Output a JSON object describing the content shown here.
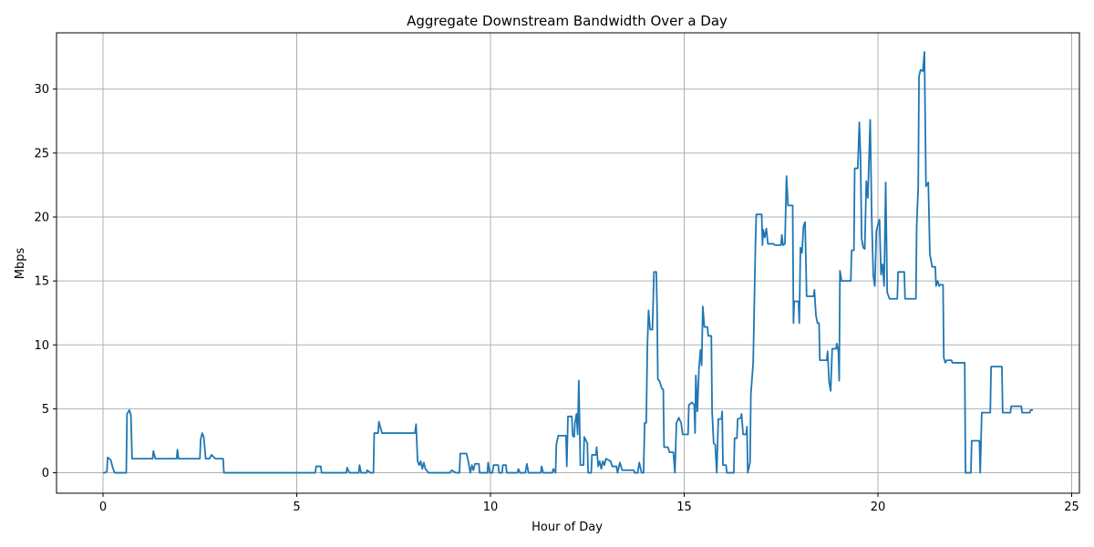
{
  "chart_data": {
    "type": "line",
    "title": "Aggregate Downstream Bandwidth Over a Day",
    "xlabel": "Hour of Day",
    "ylabel": "Mbps",
    "xlim": [
      -1.2,
      25.2
    ],
    "ylim": [
      -1.6,
      34.4
    ],
    "xticks": [
      0,
      5,
      10,
      15,
      20,
      25
    ],
    "yticks": [
      0,
      5,
      10,
      15,
      20,
      25,
      30
    ],
    "grid": true,
    "line_color": "#1f77b4",
    "series": [
      {
        "points": [
          [
            0.0,
            0.0
          ],
          [
            0.05,
            0.0
          ],
          [
            0.1,
            0.1
          ],
          [
            0.12,
            1.2
          ],
          [
            0.2,
            1.0
          ],
          [
            0.25,
            0.4
          ],
          [
            0.3,
            0.0
          ],
          [
            0.6,
            0.0
          ],
          [
            0.62,
            4.6
          ],
          [
            0.68,
            4.9
          ],
          [
            0.72,
            4.5
          ],
          [
            0.75,
            1.1
          ],
          [
            1.28,
            1.1
          ],
          [
            1.3,
            1.7
          ],
          [
            1.35,
            1.1
          ],
          [
            1.9,
            1.1
          ],
          [
            1.92,
            1.8
          ],
          [
            1.95,
            1.1
          ],
          [
            2.5,
            1.1
          ],
          [
            2.52,
            2.6
          ],
          [
            2.56,
            3.1
          ],
          [
            2.6,
            2.8
          ],
          [
            2.65,
            1.1
          ],
          [
            2.75,
            1.1
          ],
          [
            2.8,
            1.4
          ],
          [
            2.9,
            1.1
          ],
          [
            3.1,
            1.1
          ],
          [
            3.12,
            0.0
          ],
          [
            5.48,
            0.0
          ],
          [
            5.5,
            0.5
          ],
          [
            5.62,
            0.5
          ],
          [
            5.64,
            0.0
          ],
          [
            6.28,
            0.0
          ],
          [
            6.3,
            0.4
          ],
          [
            6.36,
            0.0
          ],
          [
            6.6,
            0.0
          ],
          [
            6.62,
            0.6
          ],
          [
            6.66,
            0.0
          ],
          [
            6.8,
            0.0
          ],
          [
            6.82,
            0.2
          ],
          [
            6.9,
            0.0
          ],
          [
            6.98,
            0.0
          ],
          [
            7.0,
            3.1
          ],
          [
            7.1,
            3.1
          ],
          [
            7.12,
            4.0
          ],
          [
            7.2,
            3.1
          ],
          [
            8.0,
            3.1
          ],
          [
            8.05,
            3.1
          ],
          [
            8.08,
            3.8
          ],
          [
            8.12,
            0.9
          ],
          [
            8.16,
            0.6
          ],
          [
            8.2,
            0.9
          ],
          [
            8.24,
            0.3
          ],
          [
            8.28,
            0.8
          ],
          [
            8.32,
            0.3
          ],
          [
            8.4,
            0.0
          ],
          [
            8.95,
            0.0
          ],
          [
            9.0,
            0.2
          ],
          [
            9.1,
            0.0
          ],
          [
            9.2,
            0.0
          ],
          [
            9.22,
            1.5
          ],
          [
            9.38,
            1.5
          ],
          [
            9.42,
            1.0
          ],
          [
            9.48,
            0.0
          ],
          [
            9.52,
            0.6
          ],
          [
            9.56,
            0.2
          ],
          [
            9.6,
            0.7
          ],
          [
            9.7,
            0.7
          ],
          [
            9.72,
            0.0
          ],
          [
            9.92,
            0.0
          ],
          [
            9.94,
            0.8
          ],
          [
            9.98,
            0.0
          ],
          [
            10.05,
            0.0
          ],
          [
            10.08,
            0.6
          ],
          [
            10.2,
            0.6
          ],
          [
            10.22,
            0.0
          ],
          [
            10.3,
            0.0
          ],
          [
            10.32,
            0.6
          ],
          [
            10.4,
            0.6
          ],
          [
            10.42,
            0.0
          ],
          [
            10.7,
            0.0
          ],
          [
            10.72,
            0.3
          ],
          [
            10.76,
            0.0
          ],
          [
            10.9,
            0.0
          ],
          [
            10.94,
            0.7
          ],
          [
            10.98,
            0.0
          ],
          [
            11.3,
            0.0
          ],
          [
            11.32,
            0.5
          ],
          [
            11.36,
            0.0
          ],
          [
            11.6,
            0.0
          ],
          [
            11.62,
            0.3
          ],
          [
            11.68,
            0.0
          ],
          [
            11.7,
            2.2
          ],
          [
            11.75,
            2.9
          ],
          [
            11.95,
            2.9
          ],
          [
            11.97,
            0.5
          ],
          [
            12.0,
            4.4
          ],
          [
            12.1,
            4.4
          ],
          [
            12.12,
            2.9
          ],
          [
            12.16,
            2.8
          ],
          [
            12.18,
            3.9
          ],
          [
            12.22,
            4.6
          ],
          [
            12.25,
            3.0
          ],
          [
            12.28,
            7.2
          ],
          [
            12.32,
            0.6
          ],
          [
            12.4,
            0.6
          ],
          [
            12.42,
            2.8
          ],
          [
            12.5,
            2.3
          ],
          [
            12.52,
            0.0
          ],
          [
            12.6,
            0.0
          ],
          [
            12.62,
            1.4
          ],
          [
            12.72,
            1.4
          ],
          [
            12.74,
            2.0
          ],
          [
            12.78,
            0.5
          ],
          [
            12.82,
            0.9
          ],
          [
            12.86,
            0.3
          ],
          [
            12.9,
            0.9
          ],
          [
            12.94,
            0.6
          ],
          [
            12.98,
            1.1
          ],
          [
            13.1,
            0.9
          ],
          [
            13.14,
            0.5
          ],
          [
            13.25,
            0.5
          ],
          [
            13.28,
            0.0
          ],
          [
            13.34,
            0.8
          ],
          [
            13.4,
            0.2
          ],
          [
            13.7,
            0.2
          ],
          [
            13.72,
            0.0
          ],
          [
            13.8,
            0.0
          ],
          [
            13.84,
            0.8
          ],
          [
            13.9,
            0.0
          ],
          [
            13.95,
            0.0
          ],
          [
            13.98,
            3.9
          ],
          [
            14.02,
            3.9
          ],
          [
            14.05,
            10.0
          ],
          [
            14.08,
            12.7
          ],
          [
            14.12,
            11.2
          ],
          [
            14.18,
            11.2
          ],
          [
            14.22,
            15.7
          ],
          [
            14.28,
            15.7
          ],
          [
            14.3,
            12.9
          ],
          [
            14.32,
            7.3
          ],
          [
            14.36,
            7.2
          ],
          [
            14.42,
            6.6
          ],
          [
            14.46,
            6.5
          ],
          [
            14.48,
            2.0
          ],
          [
            14.58,
            2.0
          ],
          [
            14.62,
            1.6
          ],
          [
            14.72,
            1.6
          ],
          [
            14.76,
            0.0
          ],
          [
            14.8,
            3.9
          ],
          [
            14.86,
            4.3
          ],
          [
            14.92,
            3.9
          ],
          [
            14.96,
            3.0
          ],
          [
            15.1,
            3.0
          ],
          [
            15.12,
            5.3
          ],
          [
            15.2,
            5.5
          ],
          [
            15.26,
            5.3
          ],
          [
            15.28,
            3.1
          ],
          [
            15.3,
            7.6
          ],
          [
            15.34,
            4.8
          ],
          [
            15.38,
            8.1
          ],
          [
            15.42,
            9.6
          ],
          [
            15.45,
            8.4
          ],
          [
            15.48,
            13.0
          ],
          [
            15.52,
            11.4
          ],
          [
            15.6,
            11.4
          ],
          [
            15.62,
            10.7
          ],
          [
            15.7,
            10.7
          ],
          [
            15.72,
            4.8
          ],
          [
            15.76,
            2.3
          ],
          [
            15.8,
            2.2
          ],
          [
            15.84,
            0.0
          ],
          [
            15.88,
            4.2
          ],
          [
            15.96,
            4.2
          ],
          [
            15.98,
            4.8
          ],
          [
            16.0,
            0.6
          ],
          [
            16.08,
            0.6
          ],
          [
            16.1,
            0.0
          ],
          [
            16.28,
            0.0
          ],
          [
            16.3,
            2.7
          ],
          [
            16.36,
            2.7
          ],
          [
            16.38,
            4.2
          ],
          [
            16.46,
            4.3
          ],
          [
            16.48,
            4.6
          ],
          [
            16.52,
            3.0
          ],
          [
            16.6,
            3.0
          ],
          [
            16.62,
            3.6
          ],
          [
            16.64,
            0.0
          ],
          [
            16.7,
            0.8
          ],
          [
            16.72,
            6.1
          ],
          [
            16.78,
            8.6
          ],
          [
            16.84,
            18.0
          ],
          [
            16.86,
            20.2
          ],
          [
            17.0,
            20.2
          ],
          [
            17.02,
            17.8
          ],
          [
            17.04,
            19.0
          ],
          [
            17.08,
            18.4
          ],
          [
            17.12,
            19.1
          ],
          [
            17.16,
            17.9
          ],
          [
            17.3,
            17.9
          ],
          [
            17.35,
            17.8
          ],
          [
            17.5,
            17.8
          ],
          [
            17.52,
            18.6
          ],
          [
            17.55,
            17.8
          ],
          [
            17.6,
            17.9
          ],
          [
            17.64,
            23.2
          ],
          [
            17.68,
            20.9
          ],
          [
            17.8,
            20.9
          ],
          [
            17.82,
            11.7
          ],
          [
            17.84,
            13.4
          ],
          [
            17.95,
            13.4
          ],
          [
            17.97,
            11.7
          ],
          [
            18.0,
            17.6
          ],
          [
            18.04,
            17.2
          ],
          [
            18.08,
            19.3
          ],
          [
            18.12,
            19.6
          ],
          [
            18.16,
            13.8
          ],
          [
            18.34,
            13.8
          ],
          [
            18.36,
            14.3
          ],
          [
            18.4,
            12.3
          ],
          [
            18.44,
            11.7
          ],
          [
            18.48,
            11.7
          ],
          [
            18.5,
            8.8
          ],
          [
            18.68,
            8.8
          ],
          [
            18.7,
            9.5
          ],
          [
            18.74,
            7.1
          ],
          [
            18.78,
            6.4
          ],
          [
            18.82,
            9.7
          ],
          [
            18.92,
            9.7
          ],
          [
            18.94,
            10.1
          ],
          [
            18.98,
            9.5
          ],
          [
            19.0,
            7.2
          ],
          [
            19.02,
            15.8
          ],
          [
            19.06,
            15.0
          ],
          [
            19.3,
            15.0
          ],
          [
            19.32,
            17.4
          ],
          [
            19.38,
            17.4
          ],
          [
            19.4,
            23.8
          ],
          [
            19.48,
            23.8
          ],
          [
            19.52,
            27.4
          ],
          [
            19.55,
            24.7
          ],
          [
            19.58,
            18.3
          ],
          [
            19.62,
            17.6
          ],
          [
            19.66,
            17.5
          ],
          [
            19.7,
            22.8
          ],
          [
            19.74,
            21.5
          ],
          [
            19.8,
            27.6
          ],
          [
            19.84,
            19.9
          ],
          [
            19.88,
            15.4
          ],
          [
            19.92,
            14.6
          ],
          [
            19.96,
            18.9
          ],
          [
            20.0,
            19.4
          ],
          [
            20.04,
            19.8
          ],
          [
            20.08,
            15.5
          ],
          [
            20.12,
            16.3
          ],
          [
            20.16,
            14.6
          ],
          [
            20.2,
            22.7
          ],
          [
            20.24,
            14.1
          ],
          [
            20.3,
            13.6
          ],
          [
            20.5,
            13.6
          ],
          [
            20.52,
            15.7
          ],
          [
            20.68,
            15.7
          ],
          [
            20.7,
            13.6
          ],
          [
            20.98,
            13.6
          ],
          [
            21.0,
            19.3
          ],
          [
            21.04,
            22.4
          ],
          [
            21.06,
            31.0
          ],
          [
            21.1,
            31.5
          ],
          [
            21.16,
            31.4
          ],
          [
            21.2,
            32.9
          ],
          [
            21.24,
            22.4
          ],
          [
            21.3,
            22.7
          ],
          [
            21.34,
            17.1
          ],
          [
            21.4,
            16.1
          ],
          [
            21.48,
            16.1
          ],
          [
            21.5,
            14.6
          ],
          [
            21.54,
            15.0
          ],
          [
            21.58,
            14.6
          ],
          [
            21.6,
            14.7
          ],
          [
            21.68,
            14.7
          ],
          [
            21.7,
            9.0
          ],
          [
            21.74,
            8.6
          ],
          [
            21.78,
            8.8
          ],
          [
            21.9,
            8.8
          ],
          [
            21.92,
            8.6
          ],
          [
            22.24,
            8.6
          ],
          [
            22.26,
            0.0
          ],
          [
            22.4,
            0.0
          ],
          [
            22.42,
            2.5
          ],
          [
            22.62,
            2.5
          ],
          [
            22.64,
            0.0
          ],
          [
            22.68,
            4.7
          ],
          [
            22.9,
            4.7
          ],
          [
            22.92,
            8.3
          ],
          [
            23.2,
            8.3
          ],
          [
            23.22,
            4.7
          ],
          [
            23.42,
            4.7
          ],
          [
            23.44,
            5.2
          ],
          [
            23.7,
            5.2
          ],
          [
            23.72,
            4.7
          ],
          [
            23.92,
            4.7
          ],
          [
            23.94,
            4.9
          ],
          [
            24.0,
            4.9
          ]
        ]
      }
    ]
  }
}
